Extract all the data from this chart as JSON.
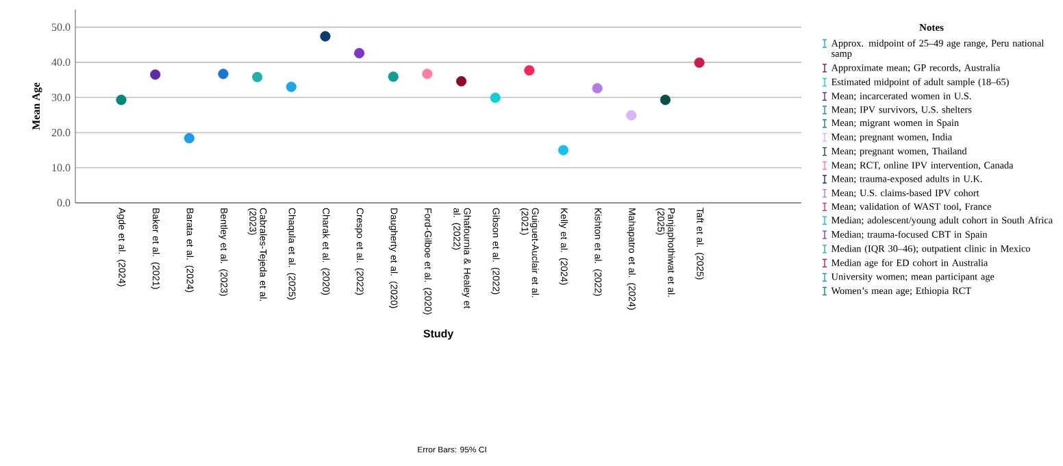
{
  "chart_data": {
    "type": "scatter",
    "xlabel": "Study",
    "ylabel": "Mean Age",
    "legend_title": "Notes",
    "annotations": [
      "Error Bars: 95% CI"
    ],
    "categories": [
      "Agde et al. (2024)",
      "Baker et al. (2021)",
      "Barata et al. (2024)",
      "Bentley et al. (2023)",
      "Cabrales-Tejeda et al. (2023)",
      "Chaqula et al. (2025)",
      "Charak et al. (2020)",
      "Crespo et al. (2022)",
      "Daugherty et al. (2020)",
      "Ford-Gilboe et al. (2020)",
      "Ghafournia & Healey et al. (2022)",
      "Gibson et al. (2022)",
      "Guiguet-Auclair et al. (2021)",
      "Kelly et al. (2024)",
      "Kishton et al. (2022)",
      "Mahapatro et al. (2024)",
      "Panjaphothiwat et al. (2025)",
      "Taft et al. (2025)"
    ],
    "ylim": [
      0,
      55
    ],
    "yticks": [
      {
        "value": 0,
        "label": "0.0"
      },
      {
        "value": 10,
        "label": "10.0"
      },
      {
        "value": 20,
        "label": "20.0"
      },
      {
        "value": 30,
        "label": "30.0"
      },
      {
        "value": 40,
        "label": "40.0"
      },
      {
        "value": 50,
        "label": "50.0"
      }
    ],
    "grid": "y",
    "legend": "right",
    "series": [
      {
        "name": "Approx. midpoint of 25–49 age range, Peru national samp",
        "color": "#1ea7e8",
        "values": [
          null,
          null,
          null,
          null,
          null,
          33.0,
          null,
          null,
          null,
          null,
          null,
          null,
          null,
          null,
          null,
          null,
          null,
          null
        ]
      },
      {
        "name": "Approximate mean; GP records, Australia",
        "color": "#8b0a2a",
        "values": [
          null,
          null,
          null,
          null,
          null,
          null,
          null,
          null,
          null,
          null,
          34.6,
          null,
          null,
          null,
          null,
          null,
          null,
          null
        ]
      },
      {
        "name": "Estimated midpoint of adult sample (18–65)",
        "color": "#12d0d0",
        "values": [
          null,
          null,
          null,
          null,
          null,
          null,
          null,
          null,
          null,
          null,
          null,
          29.9,
          null,
          null,
          null,
          null,
          null,
          null
        ]
      },
      {
        "name": "Mean; incarcerated women in U.S.",
        "color": "#5e2ca5",
        "values": [
          null,
          36.5,
          null,
          null,
          null,
          null,
          null,
          null,
          null,
          null,
          null,
          null,
          null,
          null,
          null,
          null,
          null,
          null
        ]
      },
      {
        "name": "Mean; IPV survivors, U.S. shelters",
        "color": "#129e97",
        "values": [
          null,
          null,
          null,
          null,
          null,
          null,
          null,
          null,
          35.9,
          null,
          null,
          null,
          null,
          null,
          null,
          null,
          null,
          null
        ]
      },
      {
        "name": "Mean; migrant women in Spain",
        "color": "#1976d2",
        "values": [
          null,
          null,
          null,
          36.7,
          null,
          null,
          null,
          null,
          null,
          null,
          null,
          null,
          null,
          null,
          null,
          null,
          null,
          null
        ]
      },
      {
        "name": "Mean; pregnant women, India",
        "color": "#d9b5f5",
        "values": [
          null,
          null,
          null,
          null,
          null,
          null,
          null,
          null,
          null,
          null,
          null,
          null,
          null,
          null,
          null,
          24.9,
          null,
          null
        ]
      },
      {
        "name": "Mean; pregnant women, Thailand",
        "color": "#0a4d4a",
        "values": [
          null,
          null,
          null,
          null,
          null,
          null,
          null,
          null,
          null,
          null,
          null,
          null,
          null,
          null,
          null,
          null,
          29.3,
          null
        ]
      },
      {
        "name": "Mean; RCT, online IPV intervention, Canada",
        "color": "#ff7fa0",
        "values": [
          null,
          null,
          null,
          null,
          null,
          null,
          null,
          null,
          null,
          36.7,
          null,
          null,
          null,
          null,
          null,
          null,
          null,
          null
        ]
      },
      {
        "name": "Mean; trauma-exposed adults in U.K.",
        "color": "#0d3b6e",
        "values": [
          null,
          null,
          null,
          null,
          null,
          null,
          47.4,
          null,
          null,
          null,
          null,
          null,
          null,
          null,
          null,
          null,
          null,
          null
        ]
      },
      {
        "name": "Mean; U.S. claims-based IPV cohort",
        "color": "#b57be8",
        "values": [
          null,
          null,
          null,
          null,
          null,
          null,
          null,
          null,
          null,
          null,
          null,
          null,
          null,
          null,
          32.6,
          null,
          null,
          null
        ]
      },
      {
        "name": "Mean; validation of WAST tool, France",
        "color": "#ef2a5a",
        "values": [
          null,
          null,
          null,
          null,
          null,
          null,
          null,
          null,
          null,
          null,
          null,
          null,
          37.7,
          null,
          null,
          null,
          null,
          null
        ]
      },
      {
        "name": "Median; adolescent/young adult cohort in South Africa",
        "color": "#18c0ef",
        "values": [
          null,
          null,
          null,
          null,
          null,
          null,
          null,
          null,
          null,
          null,
          null,
          null,
          null,
          15.0,
          null,
          null,
          null,
          null
        ]
      },
      {
        "name": "Median; trauma-focused CBT in Spain",
        "color": "#7b35c9",
        "values": [
          null,
          null,
          null,
          null,
          null,
          null,
          null,
          42.6,
          null,
          null,
          null,
          null,
          null,
          null,
          null,
          null,
          null,
          null
        ]
      },
      {
        "name": "Median (IQR 30–46); outpatient clinic in Mexico",
        "color": "#20b2aa",
        "values": [
          null,
          null,
          null,
          null,
          35.8,
          null,
          null,
          null,
          null,
          null,
          null,
          null,
          null,
          null,
          null,
          null,
          null,
          null
        ]
      },
      {
        "name": "Median age for ED cohort in Australia",
        "color": "#c81e4a",
        "values": [
          null,
          null,
          null,
          null,
          null,
          null,
          null,
          null,
          null,
          null,
          null,
          null,
          null,
          null,
          null,
          null,
          null,
          39.9
        ]
      },
      {
        "name": "University women; mean participant age",
        "color": "#1e9be9",
        "values": [
          null,
          null,
          18.4,
          null,
          null,
          null,
          null,
          null,
          null,
          null,
          null,
          null,
          null,
          null,
          null,
          null,
          null,
          null
        ]
      },
      {
        "name": "Women’s mean age; Ethiopia RCT",
        "color": "#00897b",
        "values": [
          29.3,
          null,
          null,
          null,
          null,
          null,
          null,
          null,
          null,
          null,
          null,
          null,
          null,
          null,
          null,
          null,
          null,
          null
        ]
      }
    ]
  }
}
